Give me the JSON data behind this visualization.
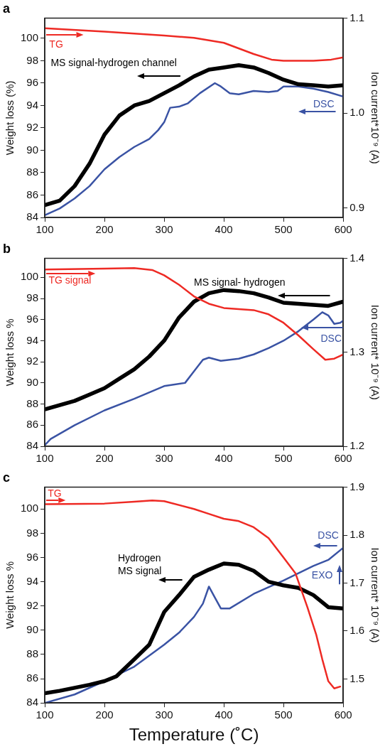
{
  "chart_data": [
    {
      "type": "line",
      "title": "a",
      "ylabel": "Weight loss (%)",
      "y2label": "Ion current*10⁻⁹ (A)",
      "xlim": [
        100,
        600
      ],
      "xticks": [
        100,
        200,
        300,
        400,
        500,
        600
      ],
      "ylim": [
        84,
        101.8
      ],
      "yticks": [
        84,
        86,
        88,
        90,
        92,
        94,
        96,
        98,
        100
      ],
      "y2lim": [
        0.89,
        1.1
      ],
      "y2ticks": [
        0.9,
        {
          "value": 1,
          "label": "1.0"
        },
        1.1
      ],
      "grid": false,
      "legend": "top left",
      "marker": "none",
      "line_style": "solid",
      "series": [
        {
          "name": "TG",
          "color": "#ee2a24",
          "x": [
            100,
            200,
            300,
            350,
            400,
            450,
            480,
            500,
            550,
            580,
            600
          ],
          "values": [
            100.9,
            100.6,
            100.25,
            100.05,
            99.6,
            98.6,
            98.1,
            98.0,
            98.0,
            98.1,
            98.3
          ]
        },
        {
          "name": "MS signal-hydrogen channel",
          "color": "#000000",
          "x": [
            100,
            125,
            150,
            175,
            200,
            225,
            250,
            275,
            300,
            325,
            350,
            375,
            400,
            425,
            450,
            475,
            500,
            525,
            550,
            575,
            600
          ],
          "values": [
            85.1,
            85.5,
            86.8,
            88.8,
            91.4,
            93.1,
            94.0,
            94.4,
            95.1,
            95.8,
            96.6,
            97.2,
            97.4,
            97.6,
            97.4,
            96.9,
            96.3,
            95.9,
            95.8,
            95.7,
            95.8
          ]
        },
        {
          "name": "DSC",
          "color": "#3a53a4",
          "x": [
            100,
            125,
            150,
            175,
            200,
            225,
            250,
            275,
            290,
            300,
            310,
            325,
            340,
            360,
            385,
            395,
            410,
            425,
            450,
            475,
            490,
            500,
            525,
            550,
            575,
            600
          ],
          "values": [
            84.2,
            84.8,
            85.7,
            86.8,
            88.3,
            89.4,
            90.3,
            91.0,
            91.8,
            92.5,
            93.8,
            93.9,
            94.2,
            95.1,
            96.0,
            95.7,
            95.1,
            95.0,
            95.3,
            95.2,
            95.3,
            95.7,
            95.7,
            95.5,
            95.2,
            94.8
          ]
        }
      ]
    },
    {
      "type": "line",
      "title": "b",
      "ylabel": "Weight loss %",
      "y2label": "Ion current* 10⁻⁹ (A)",
      "xlim": [
        100,
        600
      ],
      "xticks": [
        100,
        200,
        300,
        400,
        500,
        600
      ],
      "ylim": [
        84,
        101.8
      ],
      "yticks": [
        84,
        86,
        88,
        90,
        92,
        94,
        96,
        98,
        100
      ],
      "y2lim": [
        1.2,
        1.4
      ],
      "y2ticks": [
        1.2,
        1.3,
        1.4
      ],
      "grid": false,
      "legend": "top",
      "marker": "none",
      "line_style": "solid",
      "series": [
        {
          "name": "TG signal",
          "color": "#ee2a24",
          "x": [
            100,
            200,
            250,
            280,
            300,
            325,
            350,
            375,
            400,
            450,
            475,
            500,
            525,
            550,
            570,
            585,
            600
          ],
          "values": [
            100.74,
            100.83,
            100.88,
            100.7,
            100.2,
            99.3,
            98.2,
            97.5,
            97.1,
            96.9,
            96.5,
            95.7,
            94.5,
            93.2,
            92.2,
            92.3,
            92.7
          ]
        },
        {
          "name": "MS signal- hydrogen",
          "color": "#000000",
          "x": [
            100,
            150,
            175,
            200,
            225,
            250,
            275,
            300,
            325,
            350,
            375,
            400,
            425,
            450,
            475,
            500,
            525,
            550,
            575,
            600
          ],
          "values": [
            87.5,
            88.3,
            88.9,
            89.5,
            90.4,
            91.3,
            92.5,
            94.0,
            96.2,
            97.7,
            98.5,
            98.8,
            98.7,
            98.5,
            98.1,
            97.6,
            97.5,
            97.4,
            97.3,
            97.7
          ]
        },
        {
          "name": "DSC",
          "color": "#3a53a4",
          "x": [
            100,
            110,
            150,
            200,
            250,
            300,
            335,
            350,
            365,
            375,
            395,
            425,
            450,
            475,
            500,
            525,
            550,
            565,
            575,
            585,
            595,
            600
          ],
          "values": [
            84.1,
            84.7,
            86.0,
            87.4,
            88.5,
            89.7,
            90.0,
            91.1,
            92.2,
            92.4,
            92.1,
            92.3,
            92.7,
            93.3,
            94.0,
            94.9,
            96.0,
            96.7,
            96.4,
            95.6,
            95.7,
            95.9
          ]
        }
      ]
    },
    {
      "type": "line",
      "title": "c",
      "xlabel": "Temperature (˚C)",
      "ylabel": "Weight loss %",
      "y2label": "Ion current* 10⁻⁹ (A)",
      "xlim": [
        100,
        600
      ],
      "xticks": [
        100,
        200,
        300,
        400,
        500,
        600
      ],
      "ylim": [
        84,
        101.8
      ],
      "yticks": [
        84,
        86,
        88,
        90,
        92,
        94,
        96,
        98,
        100
      ],
      "y2lim": [
        1.45,
        1.9
      ],
      "y2ticks": [
        1.5,
        1.6,
        1.7,
        1.8,
        1.9
      ],
      "grid": false,
      "legend": "top",
      "marker": "none",
      "line_style": "solid",
      "annotations": [
        "EXO"
      ],
      "series": [
        {
          "name": "TG",
          "color": "#ee2a24",
          "x": [
            100,
            200,
            250,
            280,
            300,
            350,
            375,
            400,
            425,
            450,
            475,
            500,
            520,
            540,
            555,
            565,
            575,
            585,
            595
          ],
          "values": [
            100.4,
            100.45,
            100.6,
            100.7,
            100.65,
            100.0,
            99.6,
            99.2,
            99.0,
            98.5,
            97.6,
            96.0,
            94.7,
            91.9,
            89.6,
            87.6,
            85.8,
            85.2,
            85.35
          ]
        },
        {
          "name": "Hydrogen\nMS signal",
          "color": "#000000",
          "x": [
            100,
            125,
            150,
            175,
            200,
            220,
            250,
            275,
            300,
            325,
            350,
            375,
            400,
            425,
            450,
            475,
            500,
            525,
            550,
            575,
            600
          ],
          "values": [
            84.8,
            85.0,
            85.25,
            85.5,
            85.8,
            86.2,
            87.6,
            88.8,
            91.5,
            92.9,
            94.4,
            95.0,
            95.5,
            95.4,
            94.9,
            94.0,
            93.7,
            93.5,
            92.9,
            91.9,
            91.8
          ]
        },
        {
          "name": "DSC",
          "color": "#3a53a4",
          "x": [
            100,
            150,
            200,
            250,
            300,
            325,
            350,
            365,
            375,
            385,
            395,
            410,
            450,
            500,
            550,
            575,
            600
          ],
          "values": [
            84.0,
            84.7,
            85.8,
            87.0,
            88.8,
            89.8,
            91.1,
            92.2,
            93.6,
            92.7,
            91.8,
            91.8,
            93.0,
            94.1,
            95.3,
            95.8,
            96.8
          ]
        }
      ]
    }
  ]
}
